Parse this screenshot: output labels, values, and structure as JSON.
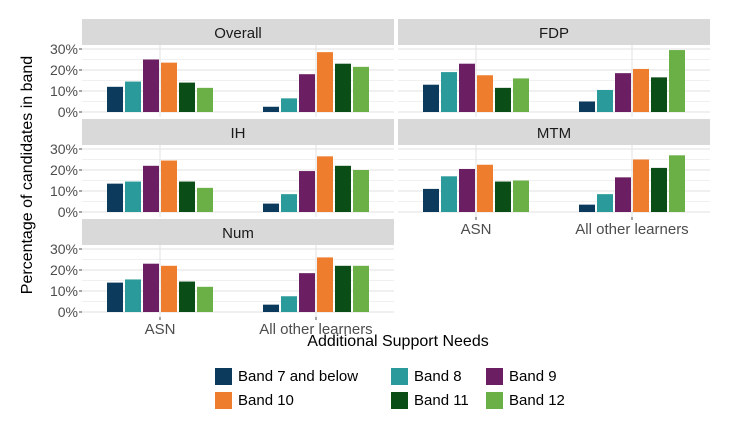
{
  "chart_data": {
    "type": "bar",
    "xlabel": "Additional Support Needs",
    "ylabel": "Percentage of candidates in band",
    "categories": [
      "ASN",
      "All other learners"
    ],
    "yticks": [
      "0%",
      "10%",
      "20%",
      "30%"
    ],
    "ylim": [
      0,
      30
    ],
    "grid": true,
    "legend_position": "bottom",
    "series_names": [
      "Band 7 and below",
      "Band 8",
      "Band 9",
      "Band 10",
      "Band 11",
      "Band 12"
    ],
    "colors": [
      "#0b3a5c",
      "#2b9a9a",
      "#6b1f62",
      "#ef7d2e",
      "#0b4d17",
      "#6bb046"
    ],
    "panels": [
      {
        "title": "Overall",
        "values": [
          [
            12,
            14.5,
            25,
            23.5,
            14,
            11.5
          ],
          [
            2.5,
            6.5,
            18,
            28.5,
            23,
            21.5
          ]
        ]
      },
      {
        "title": "FDP",
        "values": [
          [
            13,
            19,
            23,
            17.5,
            11.5,
            16
          ],
          [
            5,
            10.5,
            18.5,
            20.5,
            16.5,
            29.5
          ]
        ]
      },
      {
        "title": "IH",
        "values": [
          [
            13.5,
            14.5,
            22,
            24.5,
            14.5,
            11.5
          ],
          [
            4,
            8.5,
            19.5,
            26.5,
            22,
            20
          ]
        ]
      },
      {
        "title": "MTM",
        "values": [
          [
            11,
            17,
            20.5,
            22.5,
            14.5,
            15
          ],
          [
            3.5,
            8.5,
            16.5,
            25,
            21,
            27
          ]
        ]
      },
      {
        "title": "Num",
        "values": [
          [
            14,
            15.5,
            23,
            22,
            14.5,
            12
          ],
          [
            3.5,
            7.5,
            18.5,
            26,
            22,
            22
          ]
        ]
      }
    ]
  }
}
